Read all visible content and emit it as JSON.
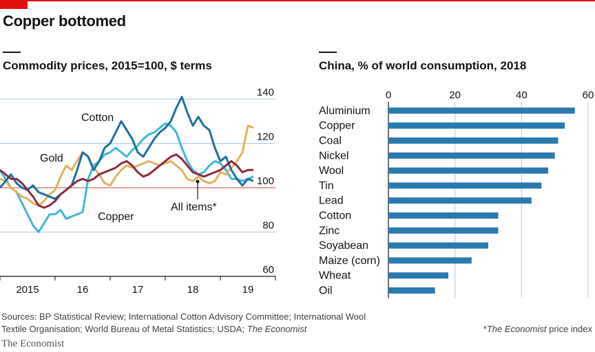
{
  "title": "Copper bottomed",
  "colors": {
    "brand_red": "#e3120b",
    "cotton": "#1c6ea4",
    "copper": "#3fb7d6",
    "gold": "#e0b25c",
    "all_items": "#8b2a3f",
    "bar": "#2a7ab0"
  },
  "chart_data": [
    {
      "type": "line",
      "title": "Commodity prices, 2015=100, $ terms",
      "x_tick_labels": [
        "2015",
        "16",
        "17",
        "18",
        "19"
      ],
      "y_ticks": [
        60,
        80,
        100,
        120,
        140
      ],
      "xlim": [
        2015.0,
        2020.0
      ],
      "ylim": [
        60,
        145
      ],
      "baseline": 100,
      "grid": true,
      "series": [
        {
          "name": "Cotton",
          "color_key": "cotton",
          "x": [
            2015.0,
            2015.1,
            2015.2,
            2015.3,
            2015.4,
            2015.5,
            2015.6,
            2015.7,
            2015.8,
            2015.9,
            2016.0,
            2016.1,
            2016.2,
            2016.3,
            2016.4,
            2016.5,
            2016.6,
            2016.7,
            2016.8,
            2016.9,
            2017.0,
            2017.1,
            2017.2,
            2017.3,
            2017.4,
            2017.5,
            2017.6,
            2017.7,
            2017.8,
            2017.9,
            2018.0,
            2018.1,
            2018.2,
            2018.3,
            2018.4,
            2018.5,
            2018.6,
            2018.7,
            2018.8,
            2018.9,
            2019.0,
            2019.1,
            2019.2,
            2019.3,
            2019.4,
            2019.5,
            2019.6
          ],
          "y": [
            100,
            103,
            106,
            102,
            100,
            99,
            101,
            98,
            97,
            96,
            95,
            97,
            99,
            101,
            108,
            116,
            114,
            108,
            112,
            118,
            120,
            125,
            130,
            126,
            122,
            116,
            114,
            118,
            122,
            125,
            127,
            130,
            136,
            141,
            134,
            128,
            132,
            128,
            126,
            118,
            112,
            114,
            108,
            104,
            101,
            104,
            103
          ]
        },
        {
          "name": "Copper",
          "color_key": "copper",
          "x": [
            2015.0,
            2015.1,
            2015.2,
            2015.3,
            2015.4,
            2015.5,
            2015.6,
            2015.7,
            2015.8,
            2015.9,
            2016.0,
            2016.1,
            2016.2,
            2016.3,
            2016.4,
            2016.5,
            2016.6,
            2016.7,
            2016.8,
            2016.9,
            2017.0,
            2017.1,
            2017.2,
            2017.3,
            2017.4,
            2017.5,
            2017.6,
            2017.7,
            2017.8,
            2017.9,
            2018.0,
            2018.1,
            2018.2,
            2018.3,
            2018.4,
            2018.5,
            2018.6,
            2018.7,
            2018.8,
            2018.9,
            2019.0,
            2019.1,
            2019.2,
            2019.3,
            2019.4,
            2019.5,
            2019.6
          ],
          "y": [
            108,
            104,
            100,
            98,
            93,
            88,
            83,
            80,
            84,
            88,
            88,
            90,
            86,
            87,
            88,
            89,
            104,
            110,
            112,
            115,
            116,
            118,
            116,
            114,
            117,
            119,
            122,
            124,
            125,
            127,
            129,
            128,
            125,
            118,
            112,
            108,
            106,
            107,
            110,
            112,
            111,
            108,
            104,
            104,
            103,
            104,
            105
          ]
        },
        {
          "name": "Gold",
          "color_key": "gold",
          "x": [
            2015.0,
            2015.1,
            2015.2,
            2015.3,
            2015.4,
            2015.5,
            2015.6,
            2015.7,
            2015.8,
            2015.9,
            2016.0,
            2016.1,
            2016.2,
            2016.3,
            2016.4,
            2016.5,
            2016.6,
            2016.7,
            2016.8,
            2016.9,
            2017.0,
            2017.1,
            2017.2,
            2017.3,
            2017.4,
            2017.5,
            2017.6,
            2017.7,
            2017.8,
            2017.9,
            2018.0,
            2018.1,
            2018.2,
            2018.3,
            2018.4,
            2018.5,
            2018.6,
            2018.7,
            2018.8,
            2018.9,
            2019.0,
            2019.1,
            2019.2,
            2019.3,
            2019.4,
            2019.5,
            2019.6
          ],
          "y": [
            104,
            103,
            100,
            98,
            96,
            95,
            93,
            92,
            94,
            97,
            99,
            105,
            110,
            108,
            112,
            116,
            114,
            109,
            106,
            102,
            101,
            105,
            108,
            110,
            109,
            110,
            111,
            112,
            111,
            110,
            111,
            112,
            110,
            108,
            104,
            103,
            105,
            103,
            102,
            103,
            107,
            106,
            109,
            112,
            116,
            128,
            127
          ]
        },
        {
          "name": "All items*",
          "color_key": "all_items",
          "x": [
            2015.0,
            2015.1,
            2015.2,
            2015.3,
            2015.4,
            2015.5,
            2015.6,
            2015.7,
            2015.8,
            2015.9,
            2016.0,
            2016.1,
            2016.2,
            2016.3,
            2016.4,
            2016.5,
            2016.6,
            2016.7,
            2016.8,
            2016.9,
            2017.0,
            2017.1,
            2017.2,
            2017.3,
            2017.4,
            2017.5,
            2017.6,
            2017.7,
            2017.8,
            2017.9,
            2018.0,
            2018.1,
            2018.2,
            2018.3,
            2018.4,
            2018.5,
            2018.6,
            2018.7,
            2018.8,
            2018.9,
            2019.0,
            2019.1,
            2019.2,
            2019.3,
            2019.4,
            2019.5,
            2019.6
          ],
          "y": [
            108,
            106,
            104,
            104,
            102,
            99,
            96,
            92,
            91,
            92,
            94,
            97,
            99,
            101,
            103,
            104,
            103,
            104,
            106,
            107,
            108,
            109,
            111,
            112,
            110,
            107,
            105,
            106,
            108,
            110,
            112,
            114,
            115,
            113,
            110,
            107,
            106,
            105,
            106,
            107,
            108,
            110,
            112,
            110,
            107,
            108,
            108
          ]
        }
      ],
      "annotations": [
        {
          "text": "Cotton",
          "series": "Cotton"
        },
        {
          "text": "Gold",
          "series": "Gold"
        },
        {
          "text": "Copper",
          "series": "Copper"
        },
        {
          "text": "All items*",
          "series": "All items*"
        }
      ]
    },
    {
      "type": "bar",
      "orientation": "horizontal",
      "title": "China, % of world consumption, 2018",
      "x_ticks": [
        0,
        20,
        40,
        60
      ],
      "xlim": [
        0,
        60
      ],
      "grid": true,
      "categories": [
        "Aluminium",
        "Copper",
        "Coal",
        "Nickel",
        "Wool",
        "Tin",
        "Lead",
        "Cotton",
        "Zinc",
        "Soyabean",
        "Maize (corn)",
        "Wheat",
        "Oil"
      ],
      "values": [
        56,
        53,
        51,
        50,
        48,
        46,
        43,
        33,
        33,
        30,
        25,
        18,
        14
      ]
    }
  ],
  "footer": {
    "sources_line1": "Sources: BP Statistical Review; International Cotton Advisory Committee; International Wool",
    "sources_line2": "Textile Organisation;  World Bureau of Metal Statistics; USDA; ",
    "sources_italic": "The Economist",
    "note_star": "*",
    "note_italic": "The Economist",
    "note_rest": " price index",
    "brand": "The Economist"
  }
}
